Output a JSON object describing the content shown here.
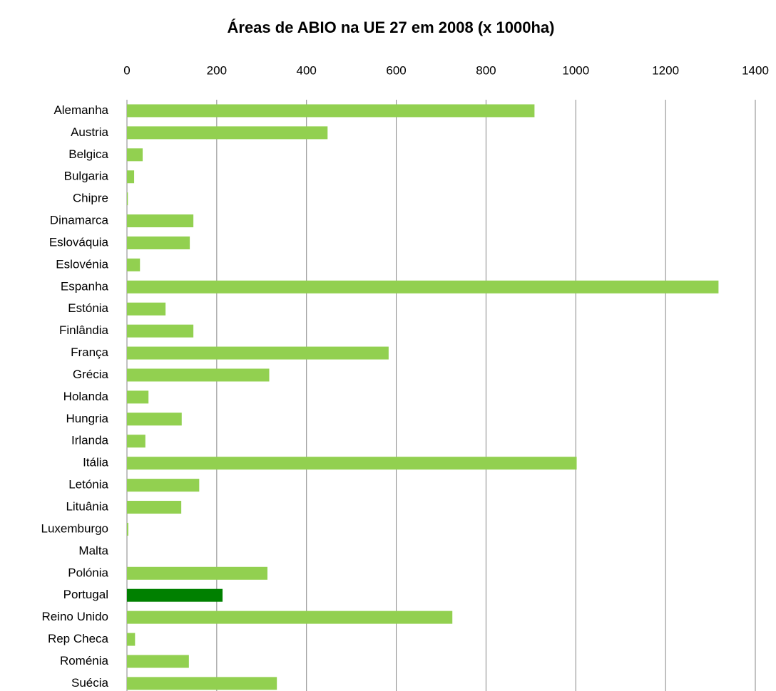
{
  "chart_data": {
    "type": "barh",
    "title": "Áreas de ABIO na UE 27 em 2008 (x 1000ha)",
    "categories": [
      "Alemanha",
      "Austria",
      "Belgica",
      "Bulgaria",
      "Chipre",
      "Dinamarca",
      "Eslováquia",
      "Eslovénia",
      "Espanha",
      "Estónia",
      "Finlândia",
      "França",
      "Grécia",
      "Holanda",
      "Hungria",
      "Irlanda",
      "Itália",
      "Letónia",
      "Lituânia",
      "Luxemburgo",
      "Malta",
      "Polónia",
      "Portugal",
      "Reino Unido",
      "Rep Checa",
      "Roménia",
      "Suécia"
    ],
    "values": [
      908,
      447,
      35,
      16,
      2,
      148,
      140,
      29,
      1318,
      86,
      148,
      583,
      317,
      48,
      122,
      41,
      1002,
      161,
      121,
      3,
      0,
      313,
      213,
      725,
      18,
      138,
      334
    ],
    "colors": [
      "#92d050",
      "#92d050",
      "#92d050",
      "#92d050",
      "#92d050",
      "#92d050",
      "#92d050",
      "#92d050",
      "#92d050",
      "#92d050",
      "#92d050",
      "#92d050",
      "#92d050",
      "#92d050",
      "#92d050",
      "#92d050",
      "#92d050",
      "#92d050",
      "#92d050",
      "#92d050",
      "#92d050",
      "#92d050",
      "#008000",
      "#92d050",
      "#92d050",
      "#92d050",
      "#92d050"
    ],
    "xlim": [
      0,
      1400
    ],
    "xticks": [
      0,
      200,
      400,
      600,
      800,
      1000,
      1200,
      1400
    ],
    "grid": true
  }
}
